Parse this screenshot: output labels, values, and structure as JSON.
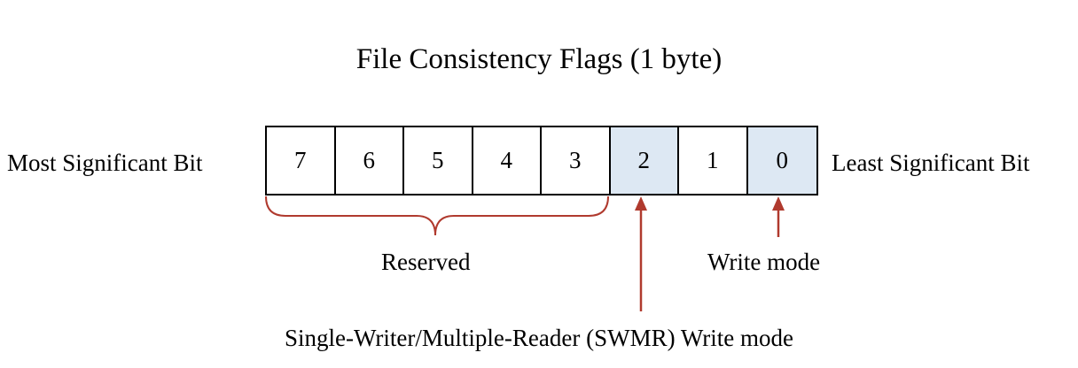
{
  "title": "File Consistency Flags (1 byte)",
  "left_label": "Most Significant Bit",
  "right_label": "Least Significant Bit",
  "bits": [
    {
      "label": "7",
      "highlighted": false
    },
    {
      "label": "6",
      "highlighted": false
    },
    {
      "label": "5",
      "highlighted": false
    },
    {
      "label": "4",
      "highlighted": false
    },
    {
      "label": "3",
      "highlighted": false
    },
    {
      "label": "2",
      "highlighted": true
    },
    {
      "label": "1",
      "highlighted": false
    },
    {
      "label": "0",
      "highlighted": true
    }
  ],
  "annotations": {
    "reserved": "Reserved",
    "write_mode": "Write mode",
    "swmr": "Single-Writer/Multiple-Reader (SWMR) Write mode"
  },
  "colors": {
    "highlight": "#dde8f3",
    "arrow": "#b03a2e",
    "border": "#000000"
  }
}
